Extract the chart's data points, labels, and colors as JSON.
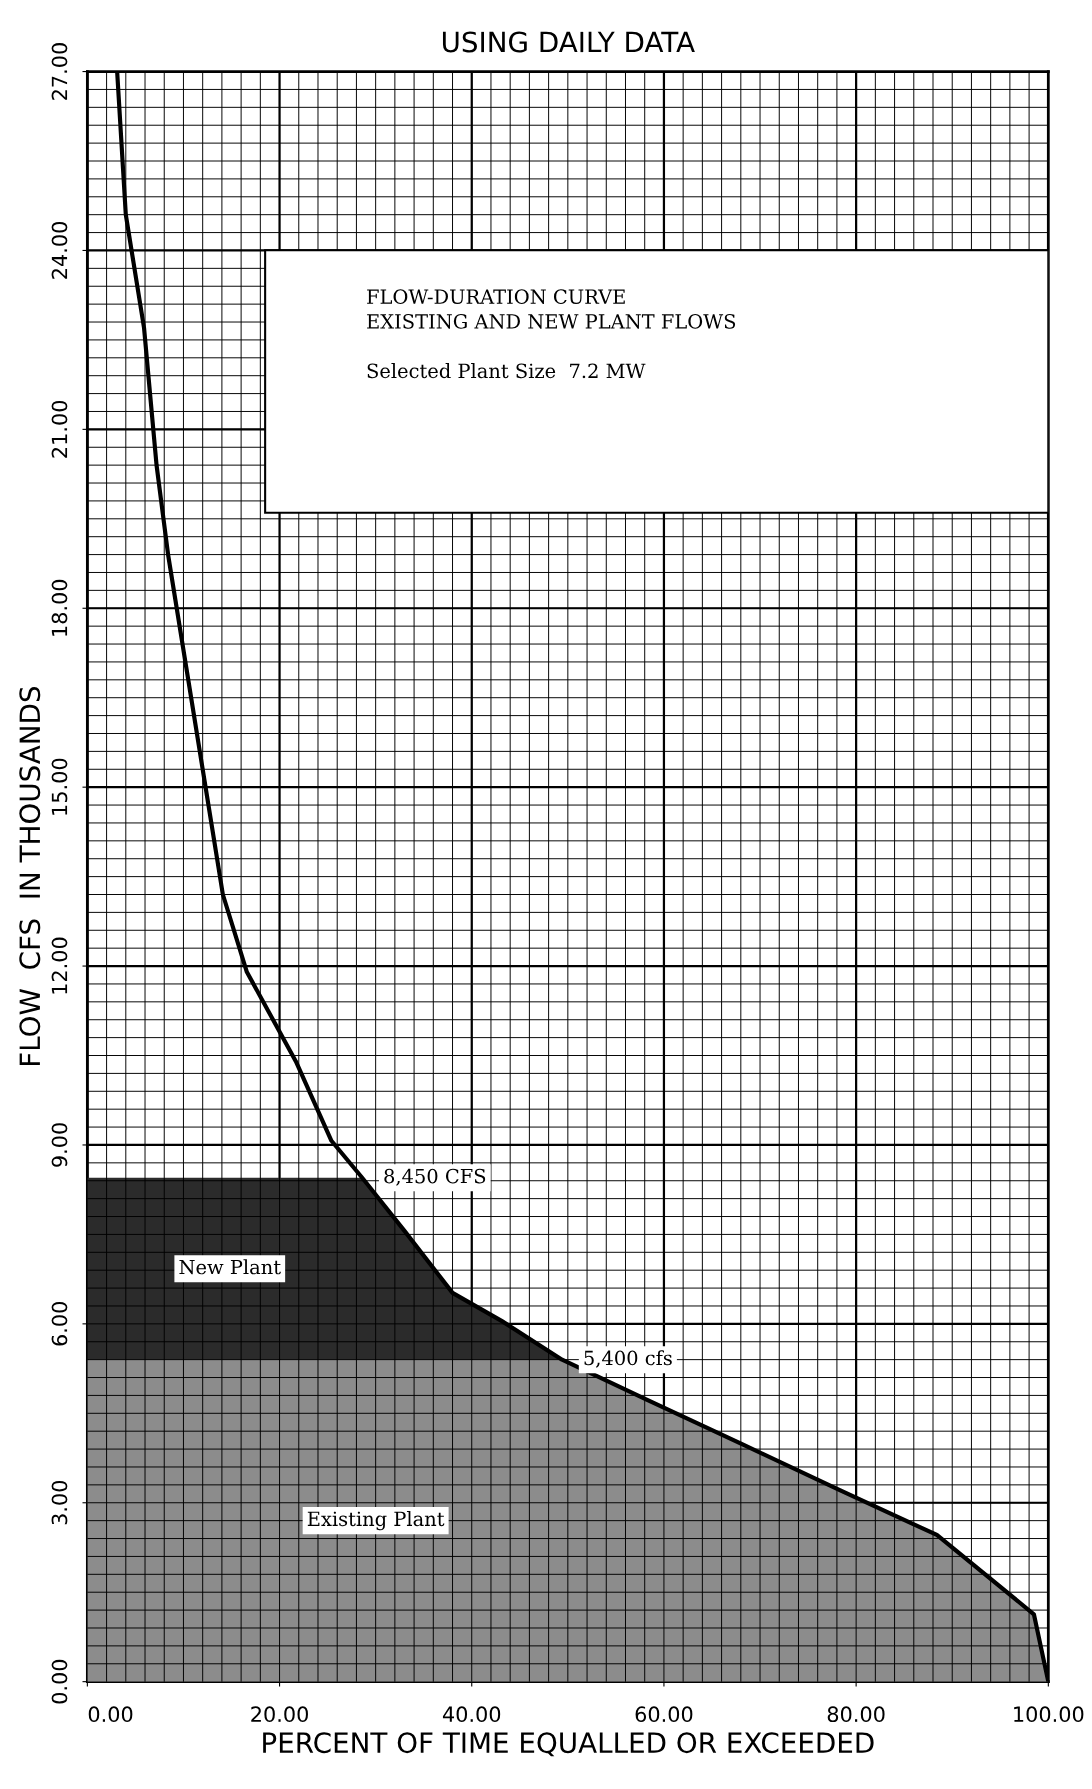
{
  "chart_data": {
    "type": "line",
    "title": "USING DAILY DATA",
    "xlabel": "PERCENT OF TIME EQUALLED OR EXCEEDED",
    "ylabel": "FLOW  CFS  IN THOUSANDS",
    "xlim": [
      0,
      100
    ],
    "ylim": [
      0,
      27
    ],
    "xticks": [
      {
        "value": 0,
        "label": "0.00"
      },
      {
        "value": 20,
        "label": "20.00"
      },
      {
        "value": 40,
        "label": "40.00"
      },
      {
        "value": 60,
        "label": "60.00"
      },
      {
        "value": 80,
        "label": "80.00"
      },
      {
        "value": 100,
        "label": "100.00"
      }
    ],
    "yticks": [
      {
        "value": 0,
        "label": "0.00"
      },
      {
        "value": 3,
        "label": "3.00"
      },
      {
        "value": 6,
        "label": "6.00"
      },
      {
        "value": 9,
        "label": "9.00"
      },
      {
        "value": 12,
        "label": "12.00"
      },
      {
        "value": 15,
        "label": "15.00"
      },
      {
        "value": 18,
        "label": "18.00"
      },
      {
        "value": 21,
        "label": "21.00"
      },
      {
        "value": 24,
        "label": "24.00"
      },
      {
        "value": 27,
        "label": "27.00"
      }
    ],
    "grid": true,
    "stacked": true,
    "series": [
      {
        "name": "Existing Plant",
        "type": "area",
        "color": "#8c8c8c",
        "x": [
          0,
          28.6,
          33.0,
          38.0,
          43.1,
          49.4,
          58.2,
          68.3,
          78.3,
          88.4,
          98.5,
          100
        ],
        "values": [
          5.4,
          5.4,
          5.4,
          5.4,
          5.4,
          5.4,
          4.73,
          3.97,
          3.21,
          2.46,
          1.13,
          0
        ]
      },
      {
        "name": "New Plant",
        "type": "area",
        "color": "#2b2b2b",
        "x": [
          0,
          28.6,
          33.0,
          38.0,
          43.1,
          49.4
        ],
        "values": [
          3.05,
          3.05,
          2.16,
          1.12,
          0.65,
          0
        ]
      },
      {
        "color": "#000000",
        "x": [
          3.1,
          4.0,
          5.9,
          7.2,
          8.4,
          10.3,
          12.2,
          14.1,
          16.6,
          21.7,
          25.4,
          28.6,
          33.0,
          38.0,
          43.1,
          49.4,
          58.2,
          68.3,
          78.3,
          88.4,
          98.5,
          100
        ],
        "values": [
          27,
          24.6,
          22.7,
          20.4,
          18.9,
          17.0,
          15.1,
          13.2,
          11.9,
          10.4,
          9.07,
          8.45,
          7.56,
          6.52,
          6.05,
          5.4,
          4.73,
          3.97,
          3.21,
          2.46,
          1.13,
          0
        ]
      }
    ],
    "annotations": [
      {
        "text": "8,450 CFS",
        "x": 28.6,
        "y": 8.45
      },
      {
        "text": "5,400 cfs",
        "x": 49.4,
        "y": 5.4
      },
      "FLOW-DURATION CURVE\nEXISTING AND NEW PLANT FLOWS",
      "Selected Plant Size  7.2 MW"
    ]
  }
}
